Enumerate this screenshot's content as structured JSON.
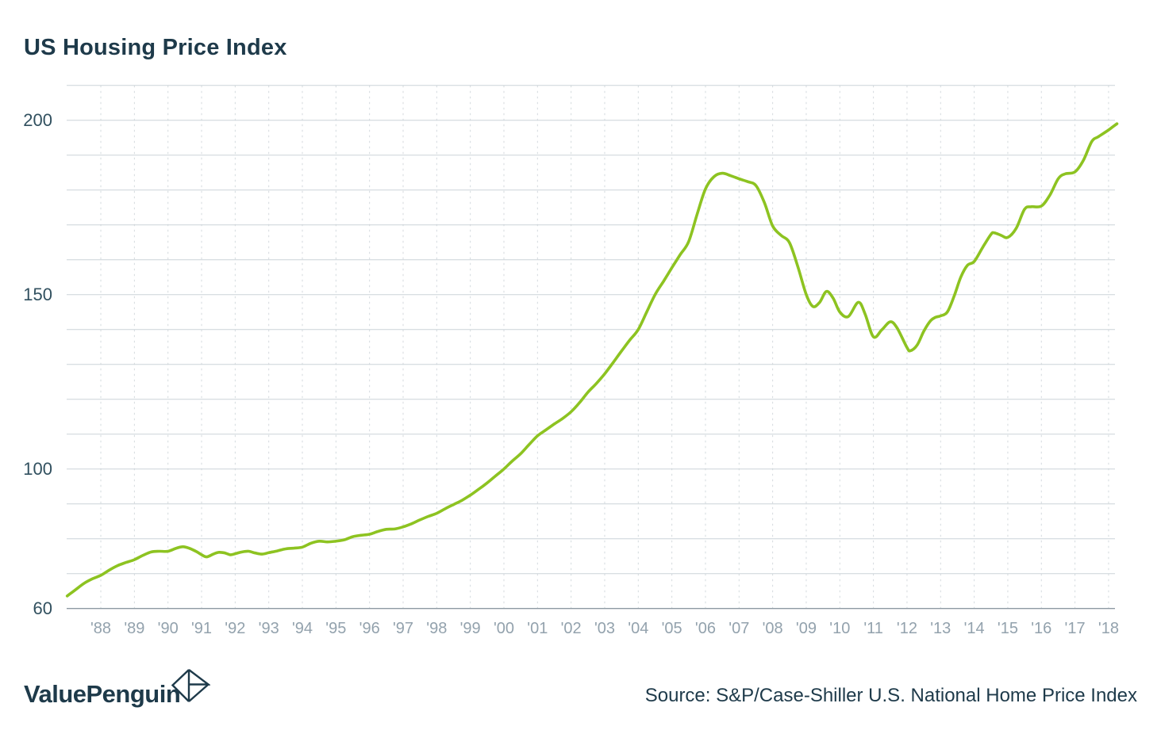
{
  "page": {
    "title": "US Housing Price Index"
  },
  "chart_data": {
    "type": "line",
    "title": "US Housing Price Index",
    "subtitle": "",
    "xlabel": "",
    "ylabel": "",
    "legend_position": "none",
    "grid": "horizontal-solid, vertical-dashed",
    "ylim": [
      60,
      210
    ],
    "y_grid_step": 10,
    "xlim": [
      1987,
      2018.3
    ],
    "y_tick_values": [
      60,
      100,
      150,
      200
    ],
    "y_tick_labels": [
      "60",
      "100",
      "150",
      "200"
    ],
    "x_tick_years": [
      1988,
      1989,
      1990,
      1991,
      1992,
      1993,
      1994,
      1995,
      1996,
      1997,
      1998,
      1999,
      2000,
      2001,
      2002,
      2003,
      2004,
      2005,
      2006,
      2007,
      2008,
      2009,
      2010,
      2011,
      2012,
      2013,
      2014,
      2015,
      2016,
      2017,
      2018
    ],
    "x_tick_labels": [
      "'88",
      "'89",
      "'90",
      "'91",
      "'92",
      "'93",
      "'94",
      "'95",
      "'96",
      "'97",
      "'98",
      "'99",
      "'00",
      "'01",
      "'02",
      "'03",
      "'04",
      "'05",
      "'06",
      "'07",
      "'08",
      "'09",
      "'10",
      "'11",
      "'12",
      "'13",
      "'14",
      "'15",
      "'16",
      "'17",
      "'18"
    ],
    "colors": {
      "line": "#8dc321",
      "grid": "#ccd3d8",
      "axis_line": "#8d99a3",
      "grid_dashed": "#d4dade",
      "x_tick_text": "#93a2ad",
      "y_tick_text": "#31505f",
      "title_text": "#1e3a4a"
    },
    "series": [
      {
        "name": "S&P/Case-Shiller U.S. National Home Price Index",
        "points": [
          [
            1987.0,
            63.6
          ],
          [
            1987.25,
            65.4
          ],
          [
            1987.5,
            67.2
          ],
          [
            1987.75,
            68.5
          ],
          [
            1988.0,
            69.5
          ],
          [
            1988.25,
            71.0
          ],
          [
            1988.5,
            72.3
          ],
          [
            1988.75,
            73.2
          ],
          [
            1989.0,
            74.0
          ],
          [
            1989.25,
            75.2
          ],
          [
            1989.5,
            76.2
          ],
          [
            1989.75,
            76.4
          ],
          [
            1990.0,
            76.4
          ],
          [
            1990.25,
            77.3
          ],
          [
            1990.45,
            77.7
          ],
          [
            1990.65,
            77.2
          ],
          [
            1990.85,
            76.3
          ],
          [
            1991.0,
            75.4
          ],
          [
            1991.15,
            74.8
          ],
          [
            1991.35,
            75.6
          ],
          [
            1991.5,
            76.1
          ],
          [
            1991.7,
            75.9
          ],
          [
            1991.85,
            75.4
          ],
          [
            1992.0,
            75.7
          ],
          [
            1992.2,
            76.2
          ],
          [
            1992.4,
            76.4
          ],
          [
            1992.6,
            75.9
          ],
          [
            1992.8,
            75.6
          ],
          [
            1993.0,
            76.0
          ],
          [
            1993.25,
            76.5
          ],
          [
            1993.5,
            77.1
          ],
          [
            1993.75,
            77.3
          ],
          [
            1994.0,
            77.6
          ],
          [
            1994.25,
            78.7
          ],
          [
            1994.5,
            79.3
          ],
          [
            1994.75,
            79.1
          ],
          [
            1995.0,
            79.3
          ],
          [
            1995.25,
            79.7
          ],
          [
            1995.5,
            80.6
          ],
          [
            1995.75,
            81.0
          ],
          [
            1996.0,
            81.3
          ],
          [
            1996.25,
            82.1
          ],
          [
            1996.5,
            82.7
          ],
          [
            1996.75,
            82.8
          ],
          [
            1997.0,
            83.4
          ],
          [
            1997.25,
            84.3
          ],
          [
            1997.5,
            85.4
          ],
          [
            1997.75,
            86.4
          ],
          [
            1998.0,
            87.3
          ],
          [
            1998.25,
            88.6
          ],
          [
            1998.5,
            89.8
          ],
          [
            1998.75,
            91.0
          ],
          [
            1999.0,
            92.5
          ],
          [
            1999.25,
            94.2
          ],
          [
            1999.5,
            96.0
          ],
          [
            1999.75,
            98.0
          ],
          [
            2000.0,
            100.0
          ],
          [
            2000.25,
            102.3
          ],
          [
            2000.5,
            104.4
          ],
          [
            2000.75,
            107.0
          ],
          [
            2001.0,
            109.5
          ],
          [
            2001.25,
            111.2
          ],
          [
            2001.5,
            112.9
          ],
          [
            2001.75,
            114.5
          ],
          [
            2002.0,
            116.4
          ],
          [
            2002.25,
            119.0
          ],
          [
            2002.5,
            122.0
          ],
          [
            2002.75,
            124.5
          ],
          [
            2003.0,
            127.3
          ],
          [
            2003.25,
            130.5
          ],
          [
            2003.5,
            133.8
          ],
          [
            2003.75,
            137.0
          ],
          [
            2004.0,
            140.0
          ],
          [
            2004.25,
            145.0
          ],
          [
            2004.5,
            150.0
          ],
          [
            2004.75,
            153.8
          ],
          [
            2005.0,
            157.7
          ],
          [
            2005.25,
            161.5
          ],
          [
            2005.5,
            165.2
          ],
          [
            2005.75,
            173.0
          ],
          [
            2006.0,
            180.3
          ],
          [
            2006.25,
            183.8
          ],
          [
            2006.5,
            184.8
          ],
          [
            2006.75,
            184.1
          ],
          [
            2007.0,
            183.2
          ],
          [
            2007.25,
            182.4
          ],
          [
            2007.5,
            181.3
          ],
          [
            2007.75,
            176.5
          ],
          [
            2008.0,
            169.7
          ],
          [
            2008.25,
            167.0
          ],
          [
            2008.5,
            164.9
          ],
          [
            2008.75,
            158.0
          ],
          [
            2009.0,
            150.0
          ],
          [
            2009.2,
            146.6
          ],
          [
            2009.4,
            147.8
          ],
          [
            2009.6,
            150.9
          ],
          [
            2009.8,
            149.0
          ],
          [
            2010.0,
            145.0
          ],
          [
            2010.25,
            143.7
          ],
          [
            2010.55,
            147.8
          ],
          [
            2010.75,
            144.5
          ],
          [
            2011.0,
            137.9
          ],
          [
            2011.25,
            139.9
          ],
          [
            2011.5,
            142.2
          ],
          [
            2011.7,
            140.5
          ],
          [
            2012.0,
            134.8
          ],
          [
            2012.1,
            133.9
          ],
          [
            2012.3,
            135.5
          ],
          [
            2012.5,
            139.5
          ],
          [
            2012.7,
            142.5
          ],
          [
            2012.85,
            143.5
          ],
          [
            2013.0,
            143.9
          ],
          [
            2013.2,
            145.0
          ],
          [
            2013.4,
            149.5
          ],
          [
            2013.6,
            155.0
          ],
          [
            2013.8,
            158.4
          ],
          [
            2014.0,
            159.5
          ],
          [
            2014.25,
            163.5
          ],
          [
            2014.5,
            167.3
          ],
          [
            2014.6,
            167.7
          ],
          [
            2014.8,
            167.0
          ],
          [
            2015.0,
            166.4
          ],
          [
            2015.25,
            169.0
          ],
          [
            2015.5,
            174.5
          ],
          [
            2015.7,
            175.2
          ],
          [
            2016.0,
            175.4
          ],
          [
            2016.25,
            178.5
          ],
          [
            2016.5,
            183.2
          ],
          [
            2016.7,
            184.6
          ],
          [
            2017.0,
            185.2
          ],
          [
            2017.25,
            188.5
          ],
          [
            2017.5,
            193.9
          ],
          [
            2017.7,
            195.3
          ],
          [
            2018.0,
            197.2
          ],
          [
            2018.15,
            198.3
          ],
          [
            2018.25,
            199.0
          ]
        ]
      }
    ]
  },
  "footer": {
    "brand": "ValuePenguin",
    "source": "Source: S&P/Case-Shiller U.S. National Home Price Index"
  }
}
